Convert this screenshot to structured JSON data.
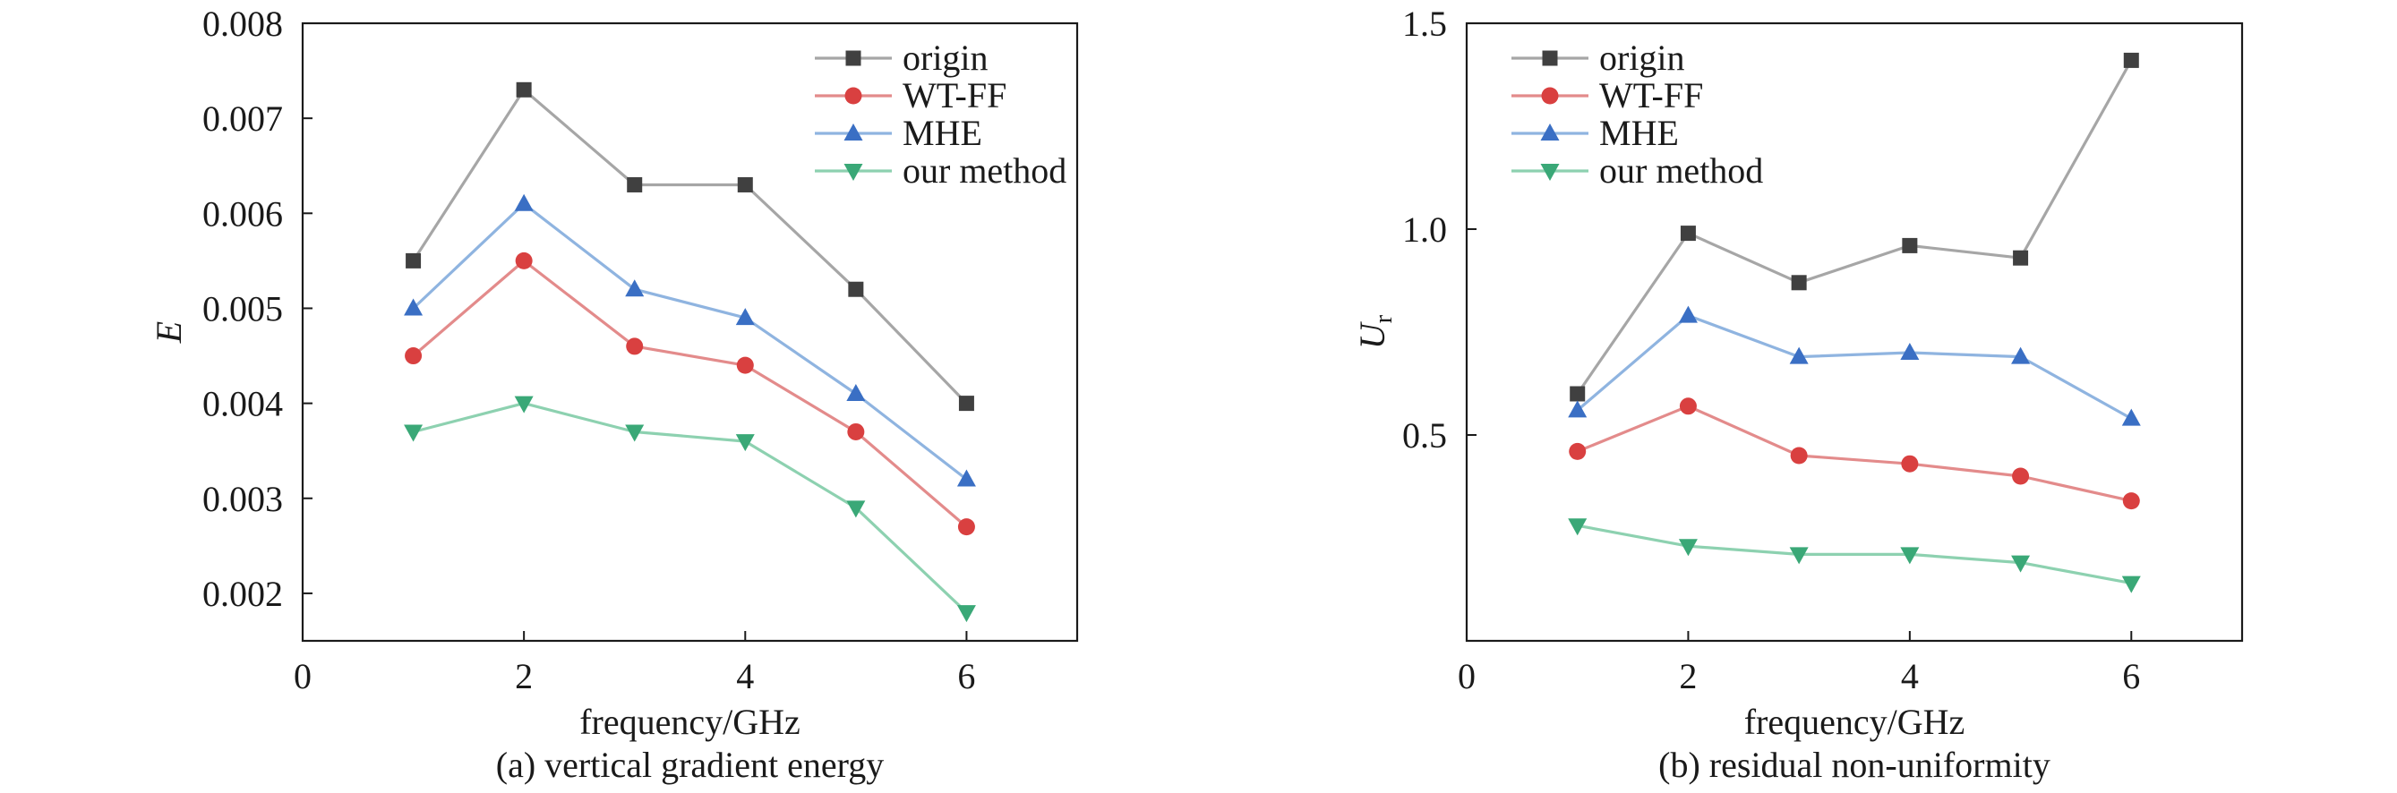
{
  "chart_data": [
    {
      "type": "line",
      "title": "",
      "caption": "(a) vertical gradient energy",
      "xlabel": "frequency/GHz",
      "ylabel": "E",
      "xlim": [
        0,
        7
      ],
      "ylim": [
        0.0015,
        0.008
      ],
      "xticks": [
        0,
        2,
        4,
        6
      ],
      "xtick_labels": [
        "0",
        "2",
        "4",
        "6"
      ],
      "yticks": [
        0.002,
        0.003,
        0.004,
        0.005,
        0.006,
        0.007,
        0.008
      ],
      "ytick_labels": [
        "0.002",
        "0.003",
        "0.004",
        "0.005",
        "0.006",
        "0.007",
        "0.008"
      ],
      "legend_position": "top-right",
      "grid": false,
      "x": [
        1,
        2,
        3,
        4,
        5,
        6
      ],
      "series": [
        {
          "name": "origin",
          "color": "#a6a6a6",
          "marker_color": "#404040",
          "marker": "square",
          "values": [
            0.0055,
            0.0073,
            0.0063,
            0.0063,
            0.0052,
            0.004
          ]
        },
        {
          "name": "WT-FF",
          "color": "#e38b8b",
          "marker_color": "#d94040",
          "marker": "circle",
          "values": [
            0.0045,
            0.0055,
            0.0046,
            0.0044,
            0.0037,
            0.0027
          ]
        },
        {
          "name": "MHE",
          "color": "#8fb4e0",
          "marker_color": "#3a6fc4",
          "marker": "triangle-up",
          "values": [
            0.005,
            0.0061,
            0.0052,
            0.0049,
            0.0041,
            0.0032
          ]
        },
        {
          "name": "our method",
          "color": "#8dd1b0",
          "marker_color": "#3aa877",
          "marker": "triangle-down",
          "values": [
            0.0037,
            0.004,
            0.0037,
            0.0036,
            0.0029,
            0.0018
          ]
        }
      ]
    },
    {
      "type": "line",
      "title": "",
      "caption": "(b) residual non-uniformity",
      "xlabel": "frequency/GHz",
      "ylabel": "U",
      "ylabel_subscript": "r",
      "xlim": [
        0,
        7
      ],
      "ylim": [
        0,
        1.5
      ],
      "xticks": [
        0,
        2,
        4,
        6
      ],
      "xtick_labels": [
        "0",
        "2",
        "4",
        "6"
      ],
      "yticks": [
        0.5,
        1.0,
        1.5
      ],
      "ytick_labels": [
        "0.5",
        "1.0",
        "1.5"
      ],
      "legend_position": "top-left",
      "grid": false,
      "x": [
        1,
        2,
        3,
        4,
        5,
        6
      ],
      "series": [
        {
          "name": "origin",
          "color": "#a6a6a6",
          "marker_color": "#404040",
          "marker": "square",
          "values": [
            0.6,
            0.99,
            0.87,
            0.96,
            0.93,
            1.41
          ]
        },
        {
          "name": "WT-FF",
          "color": "#e38b8b",
          "marker_color": "#d94040",
          "marker": "circle",
          "values": [
            0.46,
            0.57,
            0.45,
            0.43,
            0.4,
            0.34
          ]
        },
        {
          "name": "MHE",
          "color": "#8fb4e0",
          "marker_color": "#3a6fc4",
          "marker": "triangle-up",
          "values": [
            0.56,
            0.79,
            0.69,
            0.7,
            0.69,
            0.54
          ]
        },
        {
          "name": "our method",
          "color": "#8dd1b0",
          "marker_color": "#3aa877",
          "marker": "triangle-down",
          "values": [
            0.28,
            0.23,
            0.21,
            0.21,
            0.19,
            0.14
          ]
        }
      ]
    }
  ]
}
